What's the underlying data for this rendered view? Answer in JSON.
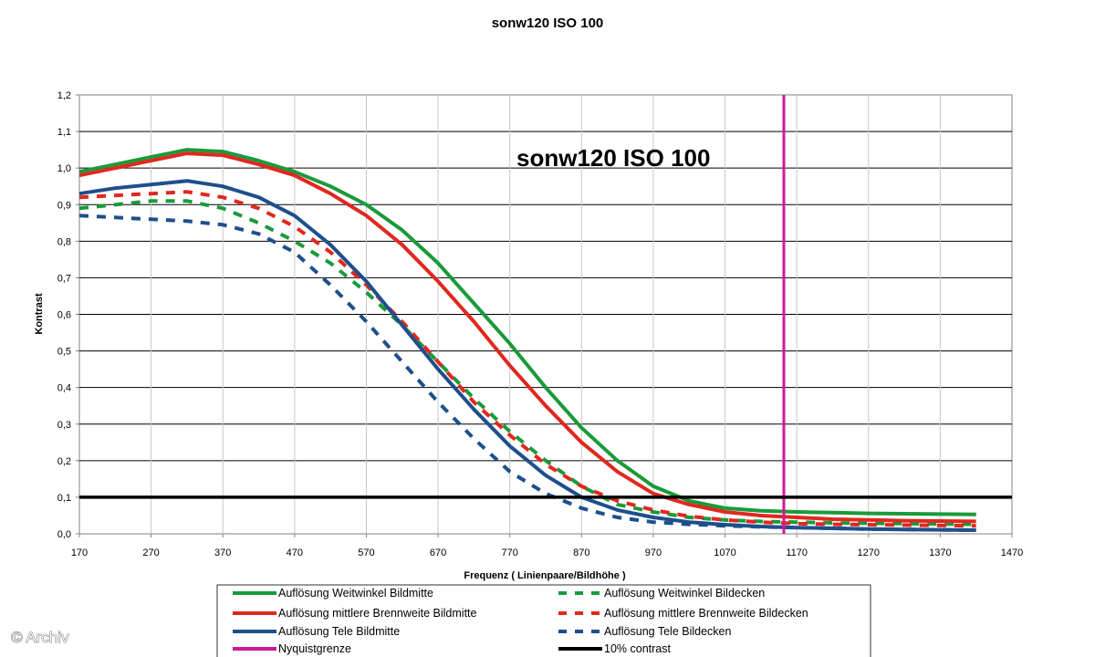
{
  "chart_data": {
    "type": "line",
    "title": "sonw120 ISO 100",
    "inner_title": "sonw120 ISO 100",
    "xlabel": "Frequenz ( Linienpaare/Bildhöhe )",
    "ylabel": "Kontrast",
    "xlim": [
      170,
      1470
    ],
    "ylim": [
      0,
      1.2
    ],
    "x_ticks": [
      170,
      270,
      370,
      470,
      570,
      670,
      770,
      870,
      970,
      1070,
      1170,
      1270,
      1370,
      1470
    ],
    "y_ticks": [
      "0,0",
      "0,1",
      "0,2",
      "0,3",
      "0,4",
      "0,5",
      "0,6",
      "0,7",
      "0,8",
      "0,9",
      "1,0",
      "1,1",
      "1,2"
    ],
    "grid": "horizontal",
    "legend_position": "bottom",
    "series": [
      {
        "name": "Auflösung Weitwinkel Bildmitte",
        "color": "#1a9a3a",
        "style": "solid",
        "x": [
          170,
          220,
          270,
          320,
          370,
          420,
          470,
          520,
          570,
          620,
          670,
          720,
          770,
          820,
          870,
          920,
          970,
          1020,
          1070,
          1120,
          1170,
          1220,
          1270,
          1320,
          1370,
          1420
        ],
        "y": [
          0.99,
          1.01,
          1.03,
          1.05,
          1.045,
          1.02,
          0.99,
          0.95,
          0.9,
          0.83,
          0.74,
          0.63,
          0.52,
          0.4,
          0.29,
          0.2,
          0.13,
          0.09,
          0.07,
          0.063,
          0.06,
          0.058,
          0.056,
          0.055,
          0.054,
          0.053
        ]
      },
      {
        "name": "Auflösung Weitwinkel Bildecken",
        "color": "#1a9a3a",
        "style": "dashed",
        "x": [
          170,
          220,
          270,
          320,
          370,
          420,
          470,
          520,
          570,
          620,
          670,
          720,
          770,
          820,
          870,
          920,
          970,
          1020,
          1070,
          1120,
          1170,
          1220,
          1270,
          1320,
          1370,
          1420
        ],
        "y": [
          0.89,
          0.9,
          0.91,
          0.91,
          0.89,
          0.85,
          0.8,
          0.74,
          0.66,
          0.57,
          0.47,
          0.37,
          0.28,
          0.2,
          0.13,
          0.08,
          0.06,
          0.045,
          0.038,
          0.034,
          0.032,
          0.03,
          0.029,
          0.028,
          0.027,
          0.026
        ]
      },
      {
        "name": "Auflösung mittlere Brennweite Bildmitte",
        "color": "#e0281e",
        "style": "solid",
        "x": [
          170,
          220,
          270,
          320,
          370,
          420,
          470,
          520,
          570,
          620,
          670,
          720,
          770,
          820,
          870,
          920,
          970,
          1020,
          1070,
          1120,
          1170,
          1220,
          1270,
          1320,
          1370,
          1420
        ],
        "y": [
          0.98,
          1.0,
          1.02,
          1.04,
          1.035,
          1.01,
          0.98,
          0.93,
          0.87,
          0.79,
          0.69,
          0.58,
          0.46,
          0.35,
          0.25,
          0.17,
          0.11,
          0.08,
          0.06,
          0.05,
          0.045,
          0.04,
          0.038,
          0.036,
          0.035,
          0.034
        ]
      },
      {
        "name": "Auflösung mittlere Brennweite Bildecken",
        "color": "#e0281e",
        "style": "dashed",
        "x": [
          170,
          220,
          270,
          320,
          370,
          420,
          470,
          520,
          570,
          620,
          670,
          720,
          770,
          820,
          870,
          920,
          970,
          1020,
          1070,
          1120,
          1170,
          1220,
          1270,
          1320,
          1370,
          1420
        ],
        "y": [
          0.92,
          0.925,
          0.93,
          0.935,
          0.92,
          0.89,
          0.84,
          0.77,
          0.68,
          0.58,
          0.47,
          0.36,
          0.27,
          0.19,
          0.13,
          0.09,
          0.065,
          0.048,
          0.038,
          0.032,
          0.028,
          0.026,
          0.025,
          0.024,
          0.023,
          0.022
        ]
      },
      {
        "name": "Auflösung Tele Bildmitte",
        "color": "#1e4f8c",
        "style": "solid",
        "x": [
          170,
          220,
          270,
          320,
          370,
          420,
          470,
          520,
          570,
          620,
          670,
          720,
          770,
          820,
          870,
          920,
          970,
          1020,
          1070,
          1120,
          1170,
          1220,
          1270,
          1320,
          1370,
          1420
        ],
        "y": [
          0.93,
          0.945,
          0.955,
          0.965,
          0.95,
          0.92,
          0.87,
          0.79,
          0.69,
          0.57,
          0.45,
          0.34,
          0.24,
          0.16,
          0.1,
          0.065,
          0.045,
          0.032,
          0.025,
          0.02,
          0.017,
          0.015,
          0.013,
          0.012,
          0.011,
          0.01
        ]
      },
      {
        "name": "Auflösung Tele Bildecken",
        "color": "#1e4f8c",
        "style": "dashed",
        "x": [
          170,
          220,
          270,
          320,
          370,
          420,
          470,
          520,
          570,
          620,
          670,
          720,
          770,
          820,
          870,
          920,
          970,
          1020,
          1070,
          1120,
          1170,
          1220,
          1270,
          1320,
          1370,
          1420
        ],
        "y": [
          0.87,
          0.865,
          0.86,
          0.855,
          0.845,
          0.82,
          0.77,
          0.68,
          0.58,
          0.47,
          0.36,
          0.26,
          0.17,
          0.11,
          0.07,
          0.045,
          0.032,
          0.026,
          0.022,
          0.019,
          0.017,
          0.015,
          0.013,
          0.012,
          0.011,
          0.01
        ]
      }
    ],
    "reference_lines": [
      {
        "name": "Nyquistgrenze",
        "orientation": "vertical",
        "x": 1152,
        "color": "#d0179a"
      },
      {
        "name": "10% contrast",
        "orientation": "horizontal",
        "y": 0.1,
        "color": "#000000"
      }
    ],
    "legend": [
      {
        "label": "Auflösung Weitwinkel Bildmitte",
        "color": "#1a9a3a",
        "style": "solid"
      },
      {
        "label": "Auflösung Weitwinkel Bildecken",
        "color": "#1a9a3a",
        "style": "dashed"
      },
      {
        "label": "Auflösung mittlere Brennweite Bildmitte",
        "color": "#e0281e",
        "style": "solid"
      },
      {
        "label": "Auflösung mittlere Brennweite Bildecken",
        "color": "#e0281e",
        "style": "dashed"
      },
      {
        "label": "Auflösung Tele Bildmitte",
        "color": "#1e4f8c",
        "style": "solid"
      },
      {
        "label": "Auflösung Tele Bildecken",
        "color": "#1e4f8c",
        "style": "dashed"
      },
      {
        "label": "Nyquistgrenze",
        "color": "#d0179a",
        "style": "solid"
      },
      {
        "label": "10% contrast",
        "color": "#000000",
        "style": "solid"
      }
    ]
  },
  "copyright": "© Archiv"
}
